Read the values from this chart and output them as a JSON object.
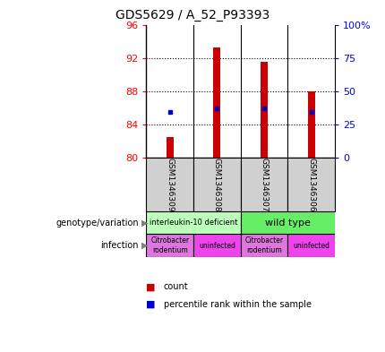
{
  "title": "GDS5629 / A_52_P93393",
  "samples": [
    "GSM1346309",
    "GSM1346308",
    "GSM1346307",
    "GSM1346306"
  ],
  "count_values": [
    82.5,
    93.3,
    91.5,
    88.0
  ],
  "percentile_values": [
    85.5,
    86.0,
    86.0,
    85.5
  ],
  "count_base": 80,
  "ylim_left": [
    80,
    96
  ],
  "ylim_right": [
    0,
    100
  ],
  "yticks_left": [
    80,
    84,
    88,
    92,
    96
  ],
  "yticks_right": [
    0,
    25,
    50,
    75,
    100
  ],
  "yticklabels_right": [
    "0",
    "25",
    "50",
    "75",
    "100%"
  ],
  "bar_color": "#cc0000",
  "dot_color": "#0000cc",
  "bar_width": 0.15,
  "genotype_labels": [
    "interleukin-10 deficient",
    "wild type"
  ],
  "genotype_color_light": "#bbffbb",
  "genotype_color_medium": "#66ee66",
  "infection_colors_citro": "#dd77dd",
  "infection_colors_uninf": "#ee44ee",
  "infection_labels": [
    "Citrobacter\nrodentium",
    "uninfected",
    "Citrobacter\nrodentium",
    "uninfected"
  ],
  "legend_count_label": "count",
  "legend_percentile_label": "percentile rank within the sample",
  "left_label_genotype": "genotype/variation",
  "left_label_infection": "infection",
  "gsm_bg_color": "#d0d0d0"
}
